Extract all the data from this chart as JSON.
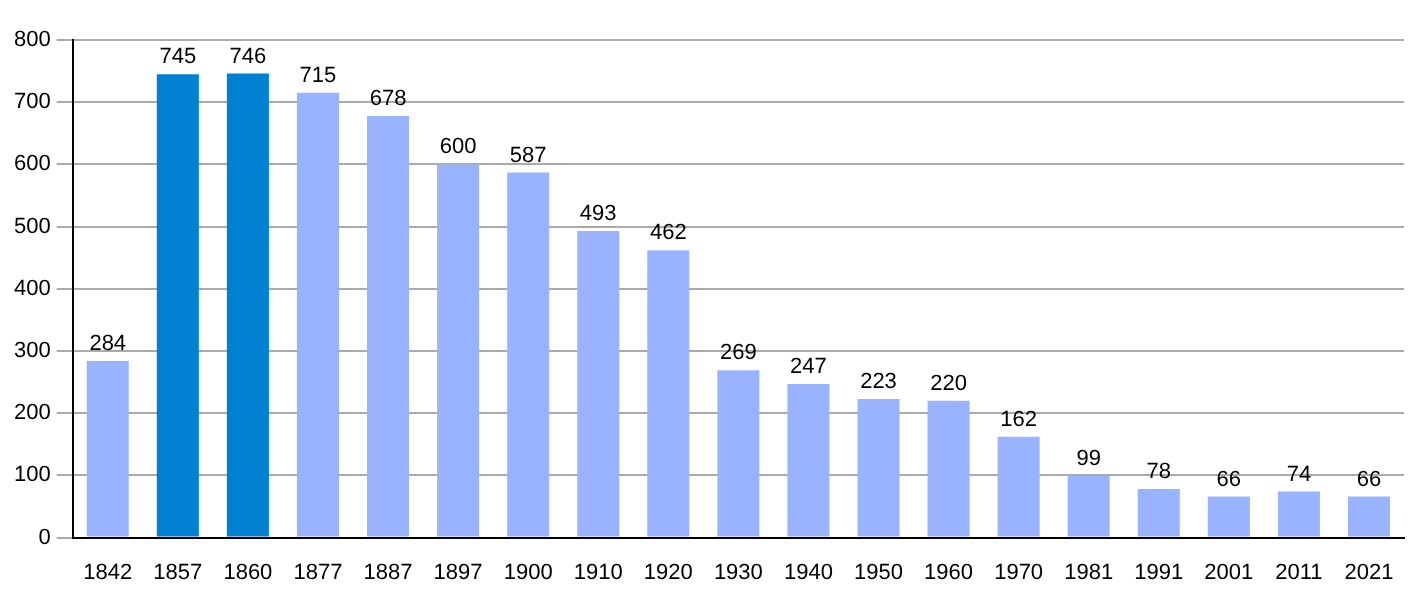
{
  "chart_data": {
    "type": "bar",
    "categories": [
      "1842",
      "1857",
      "1860",
      "1877",
      "1887",
      "1897",
      "1900",
      "1910",
      "1920",
      "1930",
      "1940",
      "1950",
      "1960",
      "1970",
      "1981",
      "1991",
      "2001",
      "2011",
      "2021"
    ],
    "values": [
      284,
      745,
      746,
      715,
      678,
      600,
      587,
      493,
      462,
      269,
      247,
      223,
      220,
      162,
      99,
      78,
      66,
      74,
      66
    ],
    "colors": [
      "#99b3ff",
      "#0080d0",
      "#0080d0",
      "#99b3ff",
      "#99b3ff",
      "#99b3ff",
      "#99b3ff",
      "#99b3ff",
      "#99b3ff",
      "#99b3ff",
      "#99b3ff",
      "#99b3ff",
      "#99b3ff",
      "#99b3ff",
      "#99b3ff",
      "#99b3ff",
      "#99b3ff",
      "#99b3ff",
      "#99b3ff"
    ],
    "ylim": [
      0,
      800
    ],
    "yticks": [
      0,
      100,
      200,
      300,
      400,
      500,
      600,
      700,
      800
    ],
    "grid": "y",
    "data_labels": true
  }
}
